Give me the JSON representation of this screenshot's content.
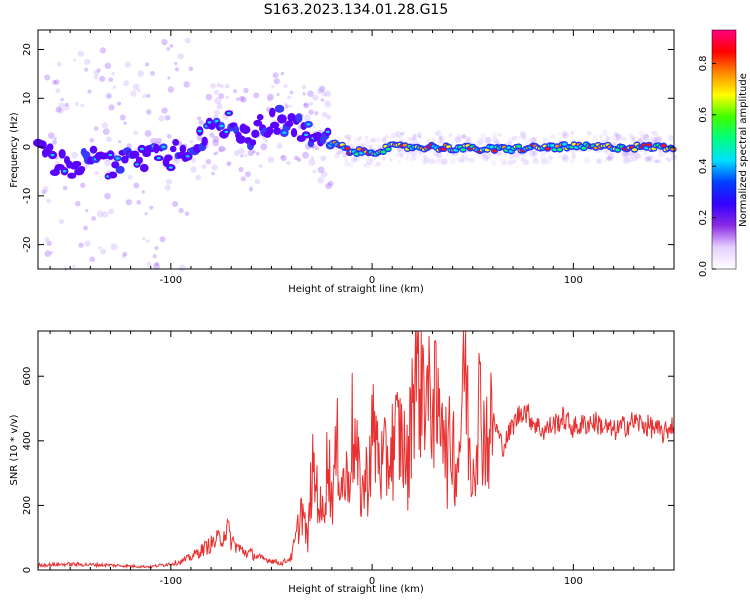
{
  "title": "S163.2023.134.01.28.G15",
  "chart_data": [
    {
      "type": "heatmap",
      "xlabel": "Height of straight line (km)",
      "ylabel": "Frequency (Hz)",
      "xlim": [
        -166,
        150
      ],
      "ylim": [
        -25,
        24
      ],
      "xticks": [
        -100,
        0,
        100
      ],
      "yticks": [
        -20,
        -10,
        0,
        10,
        20
      ],
      "colorbar": {
        "label": "Normalized spectral amplitude",
        "range": [
          0,
          0.93
        ],
        "ticks": [
          0.0,
          0.2,
          0.4,
          0.6,
          0.8
        ],
        "colors": [
          "#ffffff",
          "#e6d0ff",
          "#8a2be2",
          "#3300ff",
          "#0040ff",
          "#00e0ff",
          "#00ff80",
          "#40ff00",
          "#ffff00",
          "#ff8c00",
          "#ff0000",
          "#ff0080"
        ]
      },
      "ridge": [
        {
          "x": -160,
          "y": -3
        },
        {
          "x": -150,
          "y": -4
        },
        {
          "x": -140,
          "y": -2
        },
        {
          "x": -130,
          "y": -4
        },
        {
          "x": -120,
          "y": -3
        },
        {
          "x": -110,
          "y": -2
        },
        {
          "x": -100,
          "y": -2
        },
        {
          "x": -90,
          "y": 0
        },
        {
          "x": -80,
          "y": 3
        },
        {
          "x": -70,
          "y": 5
        },
        {
          "x": -60,
          "y": 1
        },
        {
          "x": -55,
          "y": 4
        },
        {
          "x": -45,
          "y": 6
        },
        {
          "x": -40,
          "y": 4
        },
        {
          "x": -30,
          "y": 3
        },
        {
          "x": -20,
          "y": 1
        },
        {
          "x": -10,
          "y": -1
        },
        {
          "x": 0,
          "y": -1
        },
        {
          "x": 10,
          "y": 0
        },
        {
          "x": 30,
          "y": 0
        },
        {
          "x": 60,
          "y": -0.5
        },
        {
          "x": 90,
          "y": 0
        },
        {
          "x": 120,
          "y": 0
        },
        {
          "x": 150,
          "y": 0
        }
      ]
    },
    {
      "type": "line",
      "xlabel": "Height of straight line (km)",
      "ylabel": "SNR (10 * v/v)",
      "xlim": [
        -166,
        150
      ],
      "ylim": [
        0,
        740
      ],
      "xticks": [
        -100,
        0,
        100
      ],
      "yticks": [
        0,
        200,
        400,
        600
      ],
      "color": "#e83030",
      "series": [
        {
          "x": [
            -166,
            -150,
            -130,
            -120,
            -110,
            -100,
            -95,
            -90,
            -85,
            -80,
            -75,
            -72,
            -70,
            -65,
            -60,
            -55,
            -50,
            -45,
            -40,
            -37,
            -35,
            -32,
            -30,
            -27,
            -25,
            -22,
            -20,
            -17,
            -15,
            -12,
            -10,
            -7,
            -5,
            -2,
            0,
            3,
            5,
            8,
            10,
            13,
            15,
            18,
            20,
            22,
            24,
            26,
            28,
            30,
            33,
            35,
            37,
            40,
            42,
            44,
            46,
            48,
            50,
            53,
            55,
            58,
            60,
            65,
            70,
            75,
            80,
            85,
            90,
            95,
            100,
            110,
            120,
            130,
            140,
            145,
            150
          ],
          "y": [
            15,
            18,
            15,
            12,
            10,
            20,
            25,
            40,
            60,
            80,
            100,
            130,
            90,
            60,
            50,
            35,
            30,
            20,
            40,
            120,
            200,
            80,
            300,
            250,
            150,
            350,
            230,
            380,
            270,
            280,
            440,
            300,
            240,
            300,
            420,
            380,
            310,
            350,
            380,
            420,
            400,
            300,
            580,
            640,
            590,
            610,
            500,
            560,
            440,
            590,
            330,
            420,
            300,
            450,
            700,
            400,
            310,
            520,
            450,
            400,
            470,
            380,
            450,
            500,
            460,
            430,
            450,
            470,
            440,
            460,
            430,
            460,
            440,
            420,
            460
          ]
        }
      ]
    }
  ]
}
